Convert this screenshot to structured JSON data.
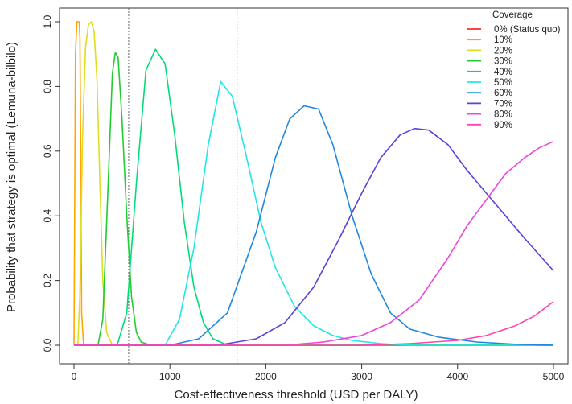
{
  "chart_data": {
    "type": "line",
    "xlabel": "Cost-effectiveness threshold (USD per DALY)",
    "ylabel": "Probability that strategy is optimal (Lemuna-bilbilo)",
    "xlim": [
      0,
      5000
    ],
    "ylim": [
      0,
      1.0
    ],
    "xticks": [
      0,
      1000,
      2000,
      3000,
      4000,
      5000
    ],
    "yticks": [
      0.0,
      0.2,
      0.4,
      0.6,
      0.8,
      1.0
    ],
    "ytick_labels": [
      "0.0",
      "0.2",
      "0.4",
      "0.6",
      "0.8",
      "1.0"
    ],
    "grid": false,
    "legend": {
      "title": "Coverage",
      "placement": "top-right"
    },
    "vlines": [
      570,
      1700
    ],
    "series": [
      {
        "name": "0% (Status quo)",
        "color": "#ff2a2a",
        "x": [
          0,
          25,
          50,
          5000
        ],
        "y": [
          0.0,
          0.0,
          0.0,
          0.0
        ]
      },
      {
        "name": "10%",
        "color": "#ffa500",
        "x": [
          0,
          15,
          30,
          45,
          55,
          62,
          70,
          80,
          100,
          150,
          5000
        ],
        "y": [
          0.0,
          0.9,
          1.0,
          1.0,
          1.0,
          0.95,
          0.6,
          0.1,
          0.0,
          0.0,
          0.0
        ]
      },
      {
        "name": "20%",
        "color": "#dddd22",
        "x": [
          0,
          40,
          60,
          90,
          120,
          150,
          180,
          210,
          240,
          270,
          300,
          340,
          400,
          5000
        ],
        "y": [
          0.0,
          0.0,
          0.15,
          0.65,
          0.92,
          0.99,
          1.0,
          0.97,
          0.82,
          0.5,
          0.2,
          0.04,
          0.0,
          0.0
        ]
      },
      {
        "name": "30%",
        "color": "#22cc33",
        "x": [
          0,
          250,
          300,
          350,
          400,
          430,
          460,
          500,
          550,
          600,
          650,
          700,
          800,
          5000
        ],
        "y": [
          0.0,
          0.0,
          0.08,
          0.45,
          0.84,
          0.905,
          0.89,
          0.7,
          0.4,
          0.15,
          0.04,
          0.01,
          0.0,
          0.0
        ]
      },
      {
        "name": "40%",
        "color": "#00dd77",
        "x": [
          0,
          450,
          550,
          650,
          750,
          850,
          950,
          1050,
          1150,
          1250,
          1350,
          1450,
          1600,
          5000
        ],
        "y": [
          0.0,
          0.0,
          0.1,
          0.5,
          0.85,
          0.915,
          0.87,
          0.65,
          0.38,
          0.18,
          0.07,
          0.02,
          0.0,
          0.0
        ]
      },
      {
        "name": "50%",
        "color": "#22e6e6",
        "x": [
          0,
          950,
          1100,
          1250,
          1400,
          1530,
          1650,
          1800,
          1950,
          2100,
          2300,
          2500,
          2700,
          2900,
          3200,
          3500,
          4000,
          5000
        ],
        "y": [
          0.0,
          0.0,
          0.08,
          0.3,
          0.62,
          0.815,
          0.77,
          0.58,
          0.38,
          0.24,
          0.12,
          0.06,
          0.03,
          0.015,
          0.005,
          0.0,
          0.0,
          0.0
        ]
      },
      {
        "name": "60%",
        "color": "#2288dd",
        "x": [
          0,
          1000,
          1300,
          1600,
          1900,
          2100,
          2250,
          2400,
          2550,
          2700,
          2900,
          3100,
          3300,
          3500,
          3800,
          4200,
          4600,
          5000
        ],
        "y": [
          0.0,
          0.0,
          0.02,
          0.1,
          0.35,
          0.58,
          0.7,
          0.74,
          0.73,
          0.62,
          0.4,
          0.22,
          0.1,
          0.05,
          0.025,
          0.01,
          0.003,
          0.0
        ]
      },
      {
        "name": "70%",
        "color": "#5544dd",
        "x": [
          0,
          1500,
          1900,
          2200,
          2500,
          2750,
          3000,
          3200,
          3400,
          3550,
          3700,
          3900,
          4100,
          4300,
          4500,
          4700,
          4850,
          5000
        ],
        "y": [
          0.0,
          0.0,
          0.02,
          0.07,
          0.18,
          0.32,
          0.47,
          0.58,
          0.65,
          0.67,
          0.665,
          0.62,
          0.54,
          0.47,
          0.4,
          0.33,
          0.28,
          0.23
        ]
      },
      {
        "name": "80%",
        "color": "#ee44dd",
        "x": [
          0,
          2200,
          2600,
          3000,
          3300,
          3600,
          3900,
          4100,
          4300,
          4500,
          4700,
          4850,
          5000
        ],
        "y": [
          0.0,
          0.0,
          0.01,
          0.03,
          0.07,
          0.14,
          0.27,
          0.37,
          0.45,
          0.53,
          0.58,
          0.61,
          0.63
        ]
      },
      {
        "name": "90%",
        "color": "#ff44aa",
        "x": [
          0,
          3000,
          3500,
          4000,
          4300,
          4600,
          4800,
          5000
        ],
        "y": [
          0.0,
          0.0,
          0.005,
          0.015,
          0.03,
          0.06,
          0.09,
          0.135
        ]
      }
    ]
  }
}
